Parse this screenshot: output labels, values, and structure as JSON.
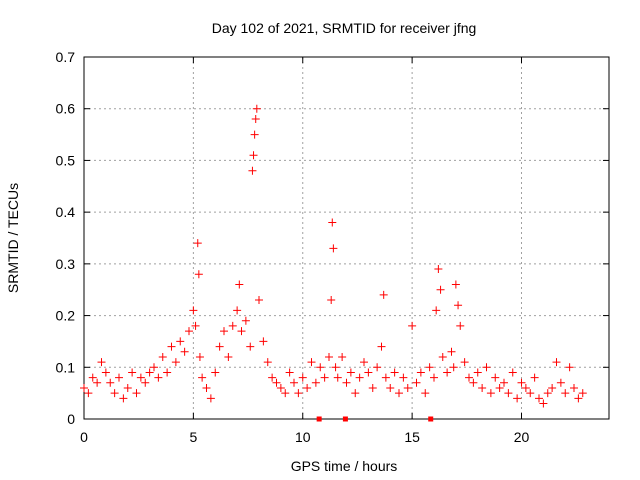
{
  "chart_data": {
    "type": "scatter",
    "title": "Day 102 of 2021, SRMTID for receiver jfng",
    "xlabel": "GPS time / hours",
    "ylabel": "SRMTID / TECUs",
    "xlim": [
      0,
      24
    ],
    "ylim": [
      0,
      0.7
    ],
    "xticks": [
      "0",
      "5",
      "10",
      "15",
      "20"
    ],
    "yticks": [
      "0",
      "0.1",
      "0.2",
      "0.3",
      "0.4",
      "0.5",
      "0.6",
      "0.7"
    ],
    "grid": true,
    "marker": "+",
    "color": "#ff0000",
    "baseline_markers_x": [
      10.75,
      11.95,
      15.85
    ],
    "series": [
      {
        "name": "SRMTID",
        "x": [
          0.0,
          0.2,
          0.4,
          0.6,
          0.8,
          1.0,
          1.2,
          1.4,
          1.6,
          1.8,
          2.0,
          2.2,
          2.4,
          2.6,
          2.8,
          3.0,
          3.2,
          3.4,
          3.6,
          3.8,
          4.0,
          4.2,
          4.4,
          4.6,
          4.8,
          5.0,
          5.1,
          5.2,
          5.25,
          5.3,
          5.4,
          5.6,
          5.8,
          6.0,
          6.2,
          6.4,
          6.6,
          6.8,
          7.0,
          7.1,
          7.2,
          7.4,
          7.6,
          7.7,
          7.75,
          7.8,
          7.85,
          7.9,
          8.0,
          8.2,
          8.4,
          8.6,
          8.8,
          9.0,
          9.2,
          9.4,
          9.6,
          9.8,
          10.0,
          10.2,
          10.4,
          10.6,
          10.8,
          11.0,
          11.2,
          11.3,
          11.35,
          11.4,
          11.5,
          11.6,
          11.8,
          12.0,
          12.2,
          12.4,
          12.6,
          12.8,
          13.0,
          13.2,
          13.4,
          13.6,
          13.7,
          13.8,
          14.0,
          14.2,
          14.4,
          14.6,
          14.8,
          15.0,
          15.2,
          15.4,
          15.6,
          15.8,
          16.0,
          16.1,
          16.2,
          16.3,
          16.4,
          16.6,
          16.8,
          16.9,
          17.0,
          17.1,
          17.2,
          17.4,
          17.6,
          17.8,
          18.0,
          18.2,
          18.4,
          18.6,
          18.8,
          19.0,
          19.2,
          19.4,
          19.6,
          19.8,
          20.0,
          20.2,
          20.4,
          20.6,
          20.8,
          21.0,
          21.2,
          21.4,
          21.6,
          21.8,
          22.0,
          22.2,
          22.4,
          22.6,
          22.8
        ],
        "y": [
          0.06,
          0.05,
          0.08,
          0.07,
          0.11,
          0.09,
          0.07,
          0.05,
          0.08,
          0.04,
          0.06,
          0.09,
          0.05,
          0.08,
          0.07,
          0.09,
          0.1,
          0.08,
          0.12,
          0.09,
          0.14,
          0.11,
          0.15,
          0.13,
          0.17,
          0.21,
          0.18,
          0.34,
          0.28,
          0.12,
          0.08,
          0.06,
          0.04,
          0.09,
          0.14,
          0.17,
          0.12,
          0.18,
          0.21,
          0.26,
          0.17,
          0.19,
          0.14,
          0.48,
          0.51,
          0.55,
          0.58,
          0.6,
          0.23,
          0.15,
          0.11,
          0.08,
          0.07,
          0.06,
          0.05,
          0.09,
          0.07,
          0.05,
          0.08,
          0.06,
          0.11,
          0.07,
          0.1,
          0.08,
          0.12,
          0.23,
          0.38,
          0.33,
          0.1,
          0.08,
          0.12,
          0.07,
          0.09,
          0.05,
          0.08,
          0.11,
          0.09,
          0.06,
          0.1,
          0.14,
          0.24,
          0.08,
          0.06,
          0.09,
          0.05,
          0.08,
          0.06,
          0.18,
          0.07,
          0.09,
          0.05,
          0.1,
          0.08,
          0.21,
          0.29,
          0.25,
          0.12,
          0.09,
          0.13,
          0.1,
          0.26,
          0.22,
          0.18,
          0.11,
          0.08,
          0.07,
          0.09,
          0.06,
          0.1,
          0.05,
          0.08,
          0.06,
          0.07,
          0.05,
          0.09,
          0.04,
          0.07,
          0.06,
          0.05,
          0.08,
          0.04,
          0.03,
          0.05,
          0.06,
          0.11,
          0.07,
          0.05,
          0.1,
          0.06,
          0.04,
          0.05
        ]
      }
    ]
  }
}
